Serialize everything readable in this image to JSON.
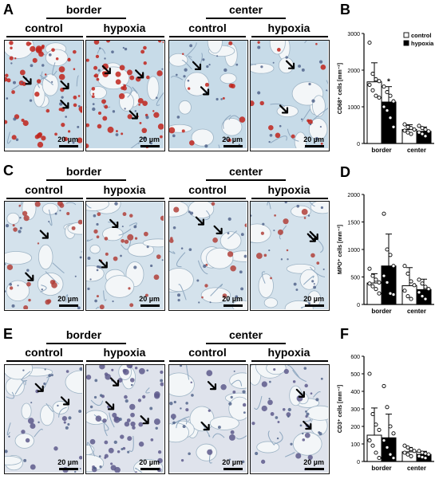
{
  "figure": {
    "panels": {
      "A": {
        "letter": "A",
        "region_left": "border",
        "region_right": "center",
        "cond1": "control",
        "cond2": "hypoxia",
        "scale": "20 µm",
        "stain": "#c0231b",
        "bg": "#c7dbe8"
      },
      "C": {
        "letter": "C",
        "region_left": "border",
        "region_right": "center",
        "cond1": "control",
        "cond2": "hypoxia",
        "scale": "20 µm",
        "stain": "#b0403a",
        "bg": "#d4e2ec"
      },
      "E": {
        "letter": "E",
        "region_left": "border",
        "region_right": "center",
        "cond1": "control",
        "cond2": "hypoxia",
        "scale": "20 µm",
        "stain": "#5e5a8c",
        "bg": "#dfe3ec"
      },
      "B": {
        "letter": "B"
      },
      "D": {
        "letter": "D"
      },
      "F": {
        "letter": "F"
      }
    }
  },
  "chart_data": [
    {
      "panel": "B",
      "type": "bar",
      "ylabel": "CD68⁺ cells [mm⁻²]",
      "categories": [
        "border",
        "center"
      ],
      "ylim": [
        0,
        3000
      ],
      "yticks": [
        0,
        1000,
        2000,
        3000
      ],
      "legend": [
        "control",
        "hypoxia"
      ],
      "legend_position": "top-right",
      "series": [
        {
          "name": "control",
          "values": [
            1680,
            380
          ],
          "err": [
            520,
            130
          ],
          "points": [
            [
              2750,
              1900,
              1750,
              1700,
              1600,
              1450,
              1300,
              1250
            ],
            [
              520,
              450,
              420,
              380,
              350,
              300,
              260
            ]
          ]
        },
        {
          "name": "hypoxia",
          "values": [
            1130,
            330
          ],
          "err": [
            420,
            120
          ],
          "points": [
            [
              1550,
              1400,
              1300,
              1150,
              1000,
              900,
              700,
              450
            ],
            [
              480,
              420,
              380,
              330,
              300,
              260,
              200
            ]
          ]
        }
      ],
      "annotations": [
        {
          "category": "border",
          "series": "hypoxia",
          "text": "*"
        }
      ]
    },
    {
      "panel": "D",
      "type": "bar",
      "ylabel": "MPO⁺ cells [mm⁻²]",
      "categories": [
        "border",
        "center"
      ],
      "ylim": [
        0,
        2000
      ],
      "yticks": [
        0,
        500,
        1000,
        1500,
        2000
      ],
      "series": [
        {
          "name": "control",
          "values": [
            390,
            340
          ],
          "err": [
            170,
            330
          ],
          "points": [
            [
              650,
              520,
              450,
              400,
              380,
              330,
              280,
              200
            ],
            [
              700,
              560,
              420,
              350,
              250,
              150,
              100
            ]
          ]
        },
        {
          "name": "hypoxia",
          "values": [
            700,
            270
          ],
          "err": [
            580,
            190
          ],
          "points": [
            [
              1650,
              1000,
              900,
              700,
              520,
              400,
              200,
              180
            ],
            [
              450,
              380,
              320,
              280,
              220,
              150,
              100
            ]
          ]
        }
      ]
    },
    {
      "panel": "F",
      "type": "bar",
      "ylabel": "CD3⁺ cells [mm⁻²]",
      "categories": [
        "border",
        "center"
      ],
      "ylim": [
        0,
        600
      ],
      "yticks": [
        0,
        100,
        200,
        300,
        400,
        500,
        600
      ],
      "series": [
        {
          "name": "control",
          "values": [
            150,
            55
          ],
          "err": [
            155,
            25
          ],
          "points": [
            [
              500,
              270,
              210,
              180,
              120,
              90,
              50,
              20
            ],
            [
              90,
              80,
              70,
              60,
              50,
              40,
              30
            ]
          ]
        },
        {
          "name": "hypoxia",
          "values": [
            135,
            40
          ],
          "err": [
            135,
            18
          ],
          "points": [
            [
              430,
              310,
              200,
              160,
              120,
              80,
              40,
              20
            ],
            [
              60,
              50,
              45,
              40,
              30,
              25,
              20
            ]
          ]
        }
      ]
    }
  ]
}
